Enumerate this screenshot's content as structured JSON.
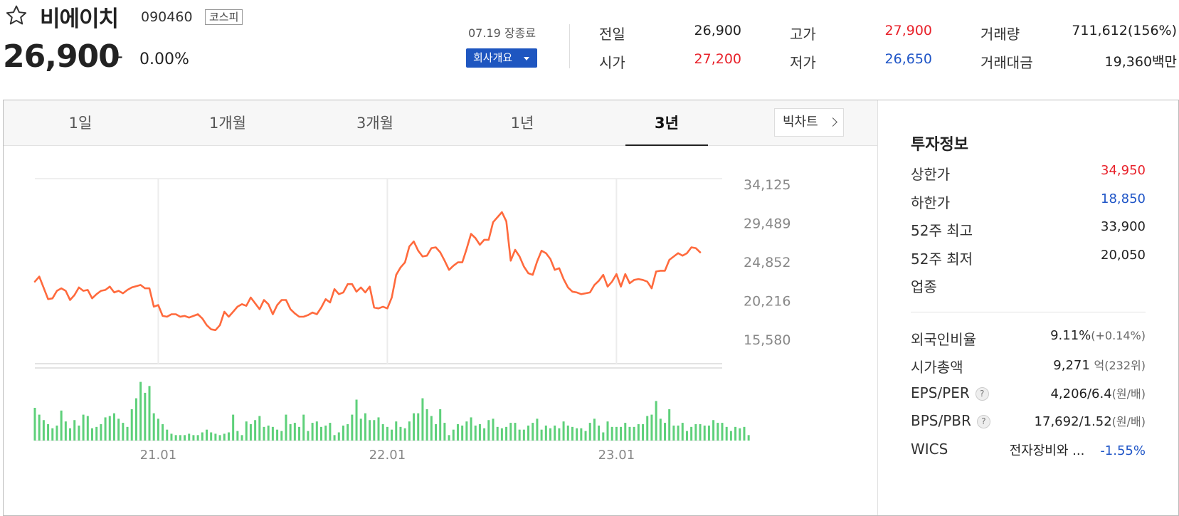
{
  "stock": {
    "name": "비에이치",
    "code": "090460",
    "market": "코스피",
    "price": "26,900",
    "change_mark": "–",
    "change_pct": "0.00%",
    "session": "07.19 장종료",
    "overview_label": "회사개요"
  },
  "quote": {
    "prev_label": "전일",
    "prev_value": "26,900",
    "high_label": "고가",
    "high_value": "27,900",
    "volume_label": "거래량",
    "volume_value": "711,612(156%)",
    "open_label": "시가",
    "open_value": "27,200",
    "low_label": "저가",
    "low_value": "26,650",
    "amount_label": "거래대금",
    "amount_value": "19,360백만"
  },
  "tabs": [
    "1일",
    "1개월",
    "3개월",
    "1년",
    "3년"
  ],
  "active_tab": "3년",
  "bigchart_label": "빅차트",
  "chart_data": {
    "type": "line",
    "ylim": [
      13000,
      36000
    ],
    "y_ticks": [
      "34,125",
      "29,489",
      "24,852",
      "20,216",
      "15,580"
    ],
    "y_tick_values": [
      34125,
      29489,
      24852,
      20216,
      15580
    ],
    "x_ticks": [
      "21.01",
      "22.01",
      "23.01"
    ],
    "x_tick_positions": [
      28,
      80,
      132
    ],
    "n_points": 157,
    "line_color": "#ff6a3d",
    "volume_color": "#5ed07a",
    "price_anchors": [
      [
        0,
        22500
      ],
      [
        1,
        23100
      ],
      [
        3,
        20400
      ],
      [
        4,
        20500
      ],
      [
        5,
        21400
      ],
      [
        6,
        21700
      ],
      [
        7,
        21400
      ],
      [
        8,
        20300
      ],
      [
        9,
        20900
      ],
      [
        10,
        21800
      ],
      [
        11,
        21400
      ],
      [
        12,
        21500
      ],
      [
        13,
        20500
      ],
      [
        14,
        21000
      ],
      [
        15,
        21400
      ],
      [
        16,
        21500
      ],
      [
        17,
        21900
      ],
      [
        18,
        21200
      ],
      [
        19,
        21400
      ],
      [
        20,
        21100
      ],
      [
        21,
        21500
      ],
      [
        22,
        21800
      ],
      [
        24,
        22100
      ],
      [
        25,
        21700
      ],
      [
        26,
        21700
      ],
      [
        27,
        19500
      ],
      [
        28,
        19700
      ],
      [
        29,
        18400
      ],
      [
        30,
        18300
      ],
      [
        31,
        18600
      ],
      [
        32,
        18600
      ],
      [
        33,
        18300
      ],
      [
        34,
        18400
      ],
      [
        35,
        18200
      ],
      [
        36,
        18400
      ],
      [
        37,
        18600
      ],
      [
        38,
        18100
      ],
      [
        39,
        17300
      ],
      [
        40,
        16800
      ],
      [
        41,
        16700
      ],
      [
        42,
        17300
      ],
      [
        43,
        18900
      ],
      [
        44,
        18300
      ],
      [
        45,
        18900
      ],
      [
        46,
        19500
      ],
      [
        47,
        19800
      ],
      [
        48,
        19600
      ],
      [
        49,
        20600
      ],
      [
        50,
        19900
      ],
      [
        51,
        19200
      ],
      [
        52,
        20300
      ],
      [
        53,
        19800
      ],
      [
        54,
        18600
      ],
      [
        55,
        19700
      ],
      [
        56,
        20300
      ],
      [
        57,
        20300
      ],
      [
        58,
        19200
      ],
      [
        59,
        18700
      ],
      [
        60,
        18300
      ],
      [
        61,
        18300
      ],
      [
        62,
        18500
      ],
      [
        63,
        18800
      ],
      [
        64,
        18600
      ],
      [
        65,
        19400
      ],
      [
        66,
        20400
      ],
      [
        67,
        20000
      ],
      [
        68,
        21600
      ],
      [
        69,
        21000
      ],
      [
        70,
        21200
      ],
      [
        71,
        22200
      ],
      [
        72,
        22200
      ],
      [
        73,
        21300
      ],
      [
        74,
        21800
      ],
      [
        75,
        21200
      ],
      [
        76,
        21900
      ],
      [
        77,
        19400
      ],
      [
        78,
        19300
      ],
      [
        79,
        19500
      ],
      [
        80,
        19300
      ],
      [
        81,
        20600
      ],
      [
        82,
        23300
      ],
      [
        83,
        24200
      ],
      [
        84,
        24800
      ],
      [
        85,
        26700
      ],
      [
        86,
        27300
      ],
      [
        87,
        26200
      ],
      [
        88,
        25500
      ],
      [
        89,
        25600
      ],
      [
        90,
        26500
      ],
      [
        91,
        26600
      ],
      [
        92,
        26000
      ],
      [
        93,
        25000
      ],
      [
        94,
        23900
      ],
      [
        95,
        24400
      ],
      [
        96,
        24800
      ],
      [
        97,
        24800
      ],
      [
        98,
        26400
      ],
      [
        99,
        28200
      ],
      [
        100,
        27700
      ],
      [
        101,
        26900
      ],
      [
        102,
        27500
      ],
      [
        103,
        27500
      ],
      [
        104,
        29600
      ],
      [
        105,
        30200
      ],
      [
        106,
        30800
      ],
      [
        107,
        29700
      ],
      [
        108,
        25000
      ],
      [
        109,
        26300
      ],
      [
        110,
        25500
      ],
      [
        111,
        24300
      ],
      [
        112,
        23500
      ],
      [
        113,
        23300
      ],
      [
        114,
        24900
      ],
      [
        115,
        26200
      ],
      [
        116,
        25900
      ],
      [
        117,
        25200
      ],
      [
        118,
        23900
      ],
      [
        119,
        24100
      ],
      [
        120,
        22800
      ],
      [
        121,
        21800
      ],
      [
        122,
        21300
      ],
      [
        123,
        21200
      ],
      [
        124,
        21000
      ],
      [
        125,
        21100
      ],
      [
        126,
        21200
      ],
      [
        127,
        22100
      ],
      [
        128,
        22600
      ],
      [
        129,
        23300
      ],
      [
        130,
        21900
      ],
      [
        131,
        22500
      ],
      [
        132,
        23400
      ],
      [
        133,
        21900
      ],
      [
        134,
        23400
      ],
      [
        135,
        22300
      ],
      [
        136,
        22700
      ],
      [
        137,
        22800
      ],
      [
        138,
        22700
      ],
      [
        139,
        22500
      ],
      [
        140,
        21700
      ],
      [
        141,
        23700
      ],
      [
        142,
        23800
      ],
      [
        143,
        23800
      ],
      [
        144,
        25100
      ],
      [
        145,
        25500
      ],
      [
        146,
        25900
      ],
      [
        147,
        25600
      ],
      [
        148,
        25900
      ],
      [
        149,
        26600
      ],
      [
        150,
        26500
      ],
      [
        151,
        26000
      ]
    ],
    "volume": [
      24,
      19,
      15,
      12,
      9,
      11,
      22,
      14,
      9,
      15,
      11,
      19,
      18,
      9,
      10,
      12,
      17,
      18,
      20,
      16,
      13,
      10,
      23,
      31,
      43,
      35,
      40,
      20,
      16,
      12,
      8,
      5,
      4,
      4,
      4,
      5,
      4,
      4,
      6,
      8,
      6,
      5,
      4,
      5,
      6,
      19,
      7,
      4,
      14,
      12,
      15,
      18,
      10,
      11,
      10,
      8,
      7,
      19,
      12,
      13,
      10,
      19,
      7,
      13,
      14,
      10,
      11,
      13,
      4,
      6,
      11,
      12,
      19,
      30,
      16,
      20,
      15,
      15,
      17,
      12,
      10,
      8,
      14,
      10,
      9,
      14,
      20,
      20,
      31,
      23,
      18,
      12,
      23,
      13,
      4,
      8,
      12,
      11,
      14,
      17,
      11,
      12,
      9,
      15,
      16,
      10,
      9,
      10,
      13,
      13,
      8,
      8,
      11,
      13,
      16,
      8,
      11,
      9,
      11,
      9,
      14,
      11,
      10,
      9,
      9,
      7,
      13,
      16,
      11,
      6,
      14,
      10,
      10,
      10,
      13,
      10,
      10,
      12,
      12,
      18,
      19,
      29,
      16,
      13,
      23,
      11,
      11,
      13,
      7,
      10,
      12,
      12,
      11,
      11,
      15,
      13,
      13,
      10,
      7,
      10,
      9,
      10,
      4
    ]
  },
  "invest": {
    "title": "투자정보",
    "upper_label": "상한가",
    "upper_value": "34,950",
    "lower_label": "하한가",
    "lower_value": "18,850",
    "high52_label": "52주 최고",
    "high52_value": "33,900",
    "low52_label": "52주 최저",
    "low52_value": "20,050",
    "sector_label": "업종",
    "foreign_label": "외국인비율",
    "foreign_value": "9.11%",
    "foreign_sub": "(+0.14%)",
    "mcap_label": "시가총액",
    "mcap_value": "9,271",
    "mcap_sub": "억(232위)",
    "eps_label": "EPS/PER",
    "eps_value": "4,206/6.4",
    "eps_sub": "(원/배)",
    "bps_label": "BPS/PBR",
    "bps_value": "17,692/1.52",
    "bps_sub": "(원/배)",
    "wics_label": "WICS",
    "wics_value": "전자장비와 ...",
    "wics_change": "-1.55%",
    "help_symbol": "?"
  },
  "colors": {
    "up": "#e8222b",
    "down": "#1f55c7",
    "accent": "#1e56c0"
  }
}
